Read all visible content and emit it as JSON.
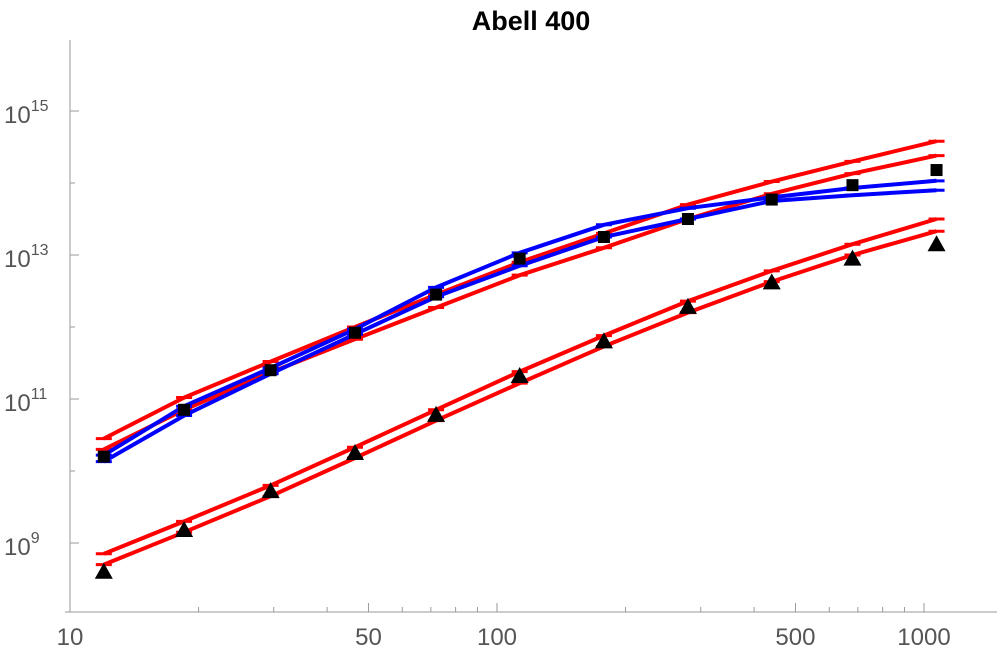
{
  "chart_data": {
    "type": "line",
    "title": "Abell 400",
    "x_scale": "log",
    "y_scale": "log",
    "xlim": [
      10,
      1500
    ],
    "ylim": [
      8.3,
      16.0
    ],
    "x_tick_labels": [
      "10",
      "50",
      "100",
      "500",
      "1000"
    ],
    "x_major_ticks": [
      10,
      50,
      100,
      500,
      1000
    ],
    "x_minor_ticks": [
      20,
      30,
      40,
      60,
      70,
      80,
      90,
      200,
      300,
      400,
      600,
      700,
      800,
      900
    ],
    "y_tick_labels": [
      {
        "base": "10",
        "exp": "9"
      },
      {
        "base": "10",
        "exp": "11"
      },
      {
        "base": "10",
        "exp": "13"
      },
      {
        "base": "10",
        "exp": "15"
      }
    ],
    "y_major_ticks_log10": [
      9,
      11,
      13,
      15
    ],
    "y_minor_ticks_log10": [
      10,
      12,
      14
    ],
    "x": [
      12,
      18.5,
      29.5,
      46.5,
      72,
      113,
      178,
      280,
      440,
      680,
      1070
    ],
    "series": [
      {
        "color": "#ff0000",
        "band": "upper",
        "values_log10": [
          10.45,
          11.02,
          11.52,
          12.0,
          12.45,
          12.9,
          13.3,
          13.7,
          14.02,
          14.3,
          14.58
        ]
      },
      {
        "color": "#ff0000",
        "band": "lower",
        "values_log10": [
          10.3,
          10.85,
          11.37,
          11.83,
          12.27,
          12.72,
          13.1,
          13.5,
          13.85,
          14.13,
          14.38
        ]
      },
      {
        "color": "#0000ff",
        "band": "upper",
        "values_log10": [
          10.22,
          10.9,
          11.43,
          11.97,
          12.55,
          13.03,
          13.42,
          13.65,
          13.8,
          13.93,
          14.03
        ]
      },
      {
        "color": "#0000ff",
        "band": "lower",
        "values_log10": [
          10.13,
          10.77,
          11.35,
          11.9,
          12.42,
          12.85,
          13.25,
          13.5,
          13.75,
          13.83,
          13.9
        ]
      },
      {
        "color": "#ff0000",
        "band": "upper",
        "values_log10": [
          8.85,
          9.3,
          9.8,
          10.33,
          10.85,
          11.38,
          11.88,
          12.36,
          12.78,
          13.15,
          13.5
        ]
      },
      {
        "color": "#ff0000",
        "band": "lower",
        "values_log10": [
          8.7,
          9.15,
          9.65,
          10.18,
          10.7,
          11.22,
          11.73,
          12.2,
          12.63,
          13.0,
          13.33
        ]
      }
    ],
    "points": [
      {
        "marker": "square",
        "color": "#000000",
        "values_log10": [
          10.2,
          10.85,
          11.4,
          11.92,
          12.45,
          12.95,
          13.25,
          13.5,
          13.77,
          13.97,
          14.18
        ]
      },
      {
        "marker": "triangle",
        "color": "#000000",
        "values_log10": [
          8.6,
          9.18,
          9.72,
          10.25,
          10.78,
          11.32,
          11.8,
          12.28,
          12.62,
          12.95,
          13.15
        ]
      }
    ]
  }
}
